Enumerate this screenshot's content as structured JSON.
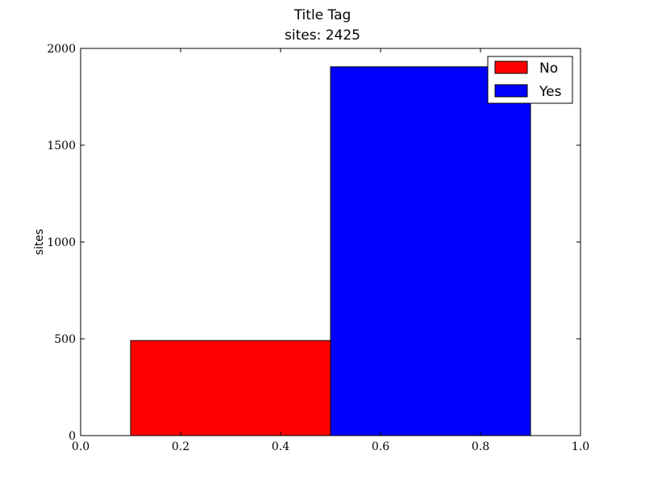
{
  "chart_data": {
    "type": "bar",
    "title": "Title Tag",
    "subtitle": "sites: 2425",
    "xlabel": "",
    "ylabel": "sites",
    "xlim": [
      0.0,
      1.0
    ],
    "ylim": [
      0,
      2000
    ],
    "xticks": [
      "0.0",
      "0.2",
      "0.4",
      "0.6",
      "0.8",
      "1.0"
    ],
    "yticks": [
      "0",
      "500",
      "1000",
      "1500",
      "2000"
    ],
    "grid": false,
    "legend_position": "top-right",
    "series": [
      {
        "name": "No",
        "x_start": 0.1,
        "x_end": 0.5,
        "value": 491,
        "color": "#ff0000"
      },
      {
        "name": "Yes",
        "x_start": 0.5,
        "x_end": 0.9,
        "value": 1905,
        "color": "#0000ff"
      }
    ]
  }
}
